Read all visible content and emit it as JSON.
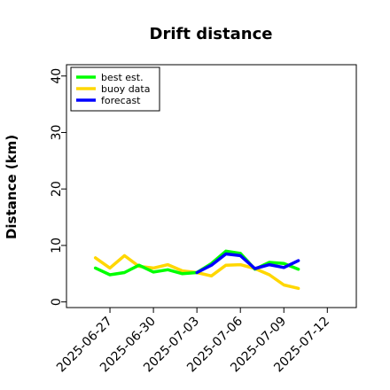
{
  "chart_data": {
    "type": "line",
    "title": "Drift distance",
    "ylabel": "Distance (km)",
    "xlabel": "",
    "ylim": [
      -1,
      42
    ],
    "xlim": [
      "2025-06-24",
      "2025-07-14"
    ],
    "yticks": [
      0,
      10,
      20,
      30,
      40
    ],
    "xticks": [
      {
        "date": "2025-06-27",
        "label": "2025-06-27",
        "color": "#000000"
      },
      {
        "date": "2025-06-30",
        "label": "2025-06-30",
        "color": "#000000"
      },
      {
        "date": "2025-07-03",
        "label": "2025-07-03",
        "color": "#228B22"
      },
      {
        "date": "2025-07-06",
        "label": "2025-07-06",
        "color": "#000000"
      },
      {
        "date": "2025-07-09",
        "label": "2025-07-09",
        "color": "#000000"
      },
      {
        "date": "2025-07-12",
        "label": "2025-07-12",
        "color": "#000000"
      }
    ],
    "legend_position": "top-left",
    "grid": false,
    "series": [
      {
        "name": "best est.",
        "color": "#00FF00",
        "x": [
          "2025-06-26",
          "2025-06-27",
          "2025-06-28",
          "2025-06-29",
          "2025-06-30",
          "2025-07-01",
          "2025-07-02",
          "2025-07-03",
          "2025-07-04",
          "2025-07-05",
          "2025-07-06",
          "2025-07-07",
          "2025-07-08",
          "2025-07-09",
          "2025-07-10"
        ],
        "y": [
          6.0,
          4.8,
          5.2,
          6.5,
          5.3,
          5.7,
          5.0,
          5.2,
          6.8,
          9.0,
          8.6,
          5.8,
          7.0,
          6.8,
          5.8
        ]
      },
      {
        "name": "buoy data",
        "color": "#FFD700",
        "x": [
          "2025-06-26",
          "2025-06-27",
          "2025-06-28",
          "2025-06-29",
          "2025-06-30",
          "2025-07-01",
          "2025-07-02",
          "2025-07-03",
          "2025-07-04",
          "2025-07-05",
          "2025-07-06",
          "2025-07-07",
          "2025-07-08",
          "2025-07-09",
          "2025-07-10"
        ],
        "y": [
          7.8,
          6.0,
          8.2,
          6.3,
          6.0,
          6.6,
          5.5,
          5.2,
          4.6,
          6.5,
          6.6,
          5.9,
          4.8,
          3.0,
          2.4
        ]
      },
      {
        "name": "forecast",
        "color": "#0000FF",
        "x": [
          "2025-07-03",
          "2025-07-04",
          "2025-07-05",
          "2025-07-06",
          "2025-07-07",
          "2025-07-08",
          "2025-07-09",
          "2025-07-10"
        ],
        "y": [
          5.2,
          6.5,
          8.5,
          8.2,
          5.9,
          6.6,
          6.1,
          7.3
        ]
      }
    ]
  }
}
